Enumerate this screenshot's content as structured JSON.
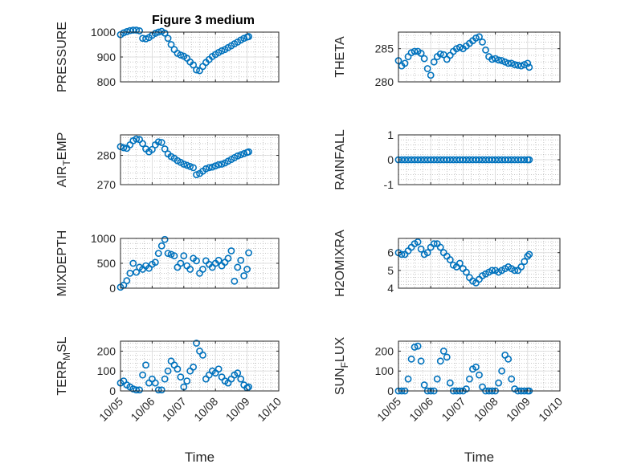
{
  "figure": {
    "title": "Figure 3 medium"
  },
  "colors": {
    "marker": "#0072BD",
    "axis": "#262626",
    "grid": "#a8a8a8",
    "background": "#ffffff"
  },
  "chart_data": [
    {
      "type": "scatter",
      "ylabel": "PRESSURE",
      "xlabel": "",
      "xlim": [
        "10/05",
        "10/10"
      ],
      "ylim": [
        800,
        1000
      ],
      "yticks": [
        800,
        900,
        1000
      ],
      "xticks": [
        "10/05",
        "10/06",
        "10/07",
        "10/08",
        "10/09",
        "10/10"
      ],
      "grid": true,
      "minor_grid": true,
      "series": [
        {
          "x": [
            0.0,
            0.1,
            0.2,
            0.3,
            0.4,
            0.5,
            0.6,
            0.7,
            0.8,
            0.9,
            1.0,
            1.1,
            1.2,
            1.3,
            1.4,
            1.5,
            1.6,
            1.7,
            1.8,
            1.9,
            2.0,
            2.1,
            2.2,
            2.3,
            2.4,
            2.5,
            2.6,
            2.7,
            2.8,
            2.9,
            3.0,
            3.1,
            3.2,
            3.3,
            3.4,
            3.5,
            3.6,
            3.7,
            3.8,
            3.9,
            4.0,
            4.05
          ],
          "y": [
            990,
            997,
            1002,
            1006,
            1008,
            1008,
            1005,
            975,
            973,
            978,
            987,
            995,
            1000,
            1003,
            996,
            975,
            950,
            930,
            915,
            908,
            903,
            895,
            880,
            868,
            848,
            845,
            862,
            878,
            890,
            902,
            910,
            918,
            925,
            930,
            938,
            945,
            953,
            960,
            968,
            975,
            980,
            982
          ]
        }
      ]
    },
    {
      "type": "scatter",
      "ylabel": "THETA",
      "xlabel": "",
      "xlim": [
        "10/05",
        "10/10"
      ],
      "ylim": [
        280,
        287.5
      ],
      "yticks": [
        280,
        285
      ],
      "xticks": [
        "10/05",
        "10/06",
        "10/07",
        "10/08",
        "10/09",
        "10/10"
      ],
      "grid": true,
      "minor_grid": true,
      "series": [
        {
          "x": [
            0.0,
            0.1,
            0.2,
            0.3,
            0.4,
            0.5,
            0.6,
            0.7,
            0.8,
            0.9,
            1.0,
            1.1,
            1.2,
            1.3,
            1.4,
            1.5,
            1.6,
            1.7,
            1.8,
            1.9,
            2.0,
            2.1,
            2.2,
            2.3,
            2.4,
            2.5,
            2.6,
            2.7,
            2.8,
            2.9,
            3.0,
            3.1,
            3.2,
            3.3,
            3.4,
            3.5,
            3.6,
            3.7,
            3.8,
            3.9,
            4.0,
            4.05
          ],
          "y": [
            283.2,
            282.4,
            282.8,
            283.8,
            284.4,
            284.6,
            284.6,
            284.3,
            283.5,
            282.0,
            281.0,
            283.0,
            283.8,
            284.2,
            284.1,
            283.4,
            284.0,
            284.6,
            285.0,
            285.2,
            285.0,
            285.4,
            285.8,
            286.2,
            286.6,
            286.8,
            286.0,
            284.8,
            283.8,
            283.4,
            283.5,
            283.3,
            283.2,
            283.0,
            282.8,
            282.8,
            282.6,
            282.5,
            282.4,
            282.6,
            282.8,
            282.2
          ]
        }
      ]
    },
    {
      "type": "scatter",
      "ylabel": "AIR_TEMP",
      "xlabel": "",
      "xlim": [
        "10/05",
        "10/10"
      ],
      "ylim": [
        270,
        287
      ],
      "yticks": [
        270,
        280
      ],
      "xticks": [
        "10/05",
        "10/06",
        "10/07",
        "10/08",
        "10/09",
        "10/10"
      ],
      "grid": true,
      "minor_grid": true,
      "series": [
        {
          "x": [
            0.0,
            0.1,
            0.2,
            0.3,
            0.4,
            0.5,
            0.6,
            0.7,
            0.8,
            0.9,
            1.0,
            1.1,
            1.2,
            1.3,
            1.4,
            1.5,
            1.6,
            1.7,
            1.8,
            1.9,
            2.0,
            2.1,
            2.2,
            2.3,
            2.4,
            2.5,
            2.6,
            2.7,
            2.8,
            2.9,
            3.0,
            3.1,
            3.2,
            3.3,
            3.4,
            3.5,
            3.6,
            3.7,
            3.8,
            3.9,
            4.0,
            4.05
          ],
          "y": [
            283.0,
            282.6,
            282.4,
            283.6,
            285.0,
            285.6,
            285.4,
            284.0,
            282.2,
            281.2,
            282.0,
            283.6,
            284.6,
            284.4,
            282.2,
            280.5,
            279.6,
            279.0,
            278.2,
            277.6,
            277.0,
            276.6,
            276.2,
            275.8,
            273.4,
            273.8,
            274.6,
            275.4,
            275.8,
            276.0,
            276.4,
            276.8,
            277.0,
            277.4,
            278.0,
            278.6,
            279.2,
            279.8,
            280.2,
            280.6,
            281.0,
            281.2
          ]
        }
      ]
    },
    {
      "type": "scatter",
      "ylabel": "RAINFALL",
      "xlabel": "",
      "xlim": [
        "10/05",
        "10/10"
      ],
      "ylim": [
        -1,
        1
      ],
      "yticks": [
        -1,
        0,
        1
      ],
      "xticks": [
        "10/05",
        "10/06",
        "10/07",
        "10/08",
        "10/09",
        "10/10"
      ],
      "grid": true,
      "minor_grid": true,
      "series": [
        {
          "x": [
            0.0,
            0.1,
            0.2,
            0.3,
            0.4,
            0.5,
            0.6,
            0.7,
            0.8,
            0.9,
            1.0,
            1.1,
            1.2,
            1.3,
            1.4,
            1.5,
            1.6,
            1.7,
            1.8,
            1.9,
            2.0,
            2.1,
            2.2,
            2.3,
            2.4,
            2.5,
            2.6,
            2.7,
            2.8,
            2.9,
            3.0,
            3.1,
            3.2,
            3.3,
            3.4,
            3.5,
            3.6,
            3.7,
            3.8,
            3.9,
            4.0,
            4.05
          ],
          "y": [
            0,
            0,
            0,
            0,
            0,
            0,
            0,
            0,
            0,
            0,
            0,
            0,
            0,
            0,
            0,
            0,
            0,
            0,
            0,
            0,
            0,
            0,
            0,
            0,
            0,
            0,
            0,
            0,
            0,
            0,
            0,
            0,
            0,
            0,
            0,
            0,
            0,
            0,
            0,
            0,
            0,
            0
          ]
        }
      ]
    },
    {
      "type": "scatter",
      "ylabel": "MIXDEPTH",
      "xlabel": "",
      "xlim": [
        "10/05",
        "10/10"
      ],
      "ylim": [
        0,
        1000
      ],
      "yticks": [
        0,
        500,
        1000
      ],
      "xticks": [
        "10/05",
        "10/06",
        "10/07",
        "10/08",
        "10/09",
        "10/10"
      ],
      "grid": true,
      "minor_grid": true,
      "series": [
        {
          "x": [
            0.0,
            0.1,
            0.2,
            0.3,
            0.4,
            0.5,
            0.6,
            0.7,
            0.8,
            0.9,
            1.0,
            1.1,
            1.2,
            1.3,
            1.4,
            1.5,
            1.6,
            1.7,
            1.8,
            1.9,
            2.0,
            2.1,
            2.2,
            2.3,
            2.4,
            2.5,
            2.6,
            2.7,
            2.8,
            2.9,
            3.0,
            3.1,
            3.2,
            3.3,
            3.4,
            3.5,
            3.6,
            3.7,
            3.8,
            3.9,
            4.0,
            4.05
          ],
          "y": [
            20,
            60,
            150,
            300,
            500,
            320,
            420,
            380,
            450,
            400,
            480,
            520,
            700,
            850,
            980,
            700,
            680,
            650,
            420,
            500,
            650,
            450,
            380,
            600,
            550,
            300,
            380,
            550,
            480,
            420,
            500,
            560,
            450,
            520,
            600,
            750,
            140,
            420,
            560,
            250,
            380,
            710
          ]
        }
      ]
    },
    {
      "type": "scatter",
      "ylabel": "H2OMIXRA",
      "xlabel": "",
      "xlim": [
        "10/05",
        "10/10"
      ],
      "ylim": [
        4,
        6.8
      ],
      "yticks": [
        4,
        5,
        6
      ],
      "xticks": [
        "10/05",
        "10/06",
        "10/07",
        "10/08",
        "10/09",
        "10/10"
      ],
      "grid": true,
      "minor_grid": true,
      "series": [
        {
          "x": [
            0.0,
            0.1,
            0.2,
            0.3,
            0.4,
            0.5,
            0.6,
            0.7,
            0.8,
            0.9,
            1.0,
            1.1,
            1.2,
            1.3,
            1.4,
            1.5,
            1.6,
            1.7,
            1.8,
            1.9,
            2.0,
            2.1,
            2.2,
            2.3,
            2.4,
            2.5,
            2.6,
            2.7,
            2.8,
            2.9,
            3.0,
            3.1,
            3.2,
            3.3,
            3.4,
            3.5,
            3.6,
            3.7,
            3.8,
            3.9,
            4.0,
            4.05
          ],
          "y": [
            6.0,
            5.9,
            5.9,
            6.1,
            6.3,
            6.5,
            6.6,
            6.2,
            5.9,
            6.0,
            6.3,
            6.5,
            6.5,
            6.3,
            6.0,
            5.8,
            5.6,
            5.3,
            5.2,
            5.4,
            5.1,
            4.9,
            4.6,
            4.4,
            4.3,
            4.5,
            4.7,
            4.8,
            4.9,
            5.0,
            5.0,
            4.9,
            5.0,
            5.1,
            5.2,
            5.1,
            5.0,
            5.0,
            5.2,
            5.5,
            5.8,
            5.9
          ]
        }
      ]
    },
    {
      "type": "scatter",
      "ylabel": "TERR_MSL",
      "xlabel": "Time",
      "xlim": [
        "10/05",
        "10/10"
      ],
      "ylim": [
        0,
        250
      ],
      "yticks": [
        0,
        100,
        200
      ],
      "xticks": [
        "10/05",
        "10/06",
        "10/07",
        "10/08",
        "10/09",
        "10/10"
      ],
      "grid": true,
      "minor_grid": true,
      "series": [
        {
          "x": [
            0.0,
            0.1,
            0.2,
            0.3,
            0.4,
            0.5,
            0.6,
            0.7,
            0.8,
            0.9,
            1.0,
            1.1,
            1.2,
            1.3,
            1.4,
            1.5,
            1.6,
            1.7,
            1.8,
            1.9,
            2.0,
            2.1,
            2.2,
            2.3,
            2.4,
            2.5,
            2.6,
            2.7,
            2.8,
            2.9,
            3.0,
            3.1,
            3.2,
            3.3,
            3.4,
            3.5,
            3.6,
            3.7,
            3.8,
            3.9,
            4.0,
            4.05
          ],
          "y": [
            40,
            50,
            30,
            20,
            10,
            5,
            5,
            80,
            130,
            40,
            60,
            40,
            5,
            5,
            60,
            100,
            150,
            130,
            110,
            70,
            20,
            50,
            100,
            120,
            240,
            200,
            180,
            60,
            80,
            100,
            90,
            110,
            70,
            50,
            40,
            60,
            80,
            90,
            60,
            30,
            15,
            20
          ]
        }
      ]
    },
    {
      "type": "scatter",
      "ylabel": "SUN_FLUX",
      "xlabel": "Time",
      "xlim": [
        "10/05",
        "10/10"
      ],
      "ylim": [
        0,
        250
      ],
      "yticks": [
        0,
        100,
        200
      ],
      "xticks": [
        "10/05",
        "10/06",
        "10/07",
        "10/08",
        "10/09",
        "10/10"
      ],
      "grid": true,
      "minor_grid": true,
      "series": [
        {
          "x": [
            0.0,
            0.1,
            0.2,
            0.3,
            0.4,
            0.5,
            0.6,
            0.7,
            0.8,
            0.9,
            1.0,
            1.1,
            1.2,
            1.3,
            1.4,
            1.5,
            1.6,
            1.7,
            1.8,
            1.9,
            2.0,
            2.1,
            2.2,
            2.3,
            2.4,
            2.5,
            2.6,
            2.7,
            2.8,
            2.9,
            3.0,
            3.1,
            3.2,
            3.3,
            3.4,
            3.5,
            3.6,
            3.7,
            3.8,
            3.9,
            4.0,
            4.05
          ],
          "y": [
            0,
            0,
            0,
            60,
            160,
            220,
            225,
            150,
            30,
            0,
            0,
            0,
            60,
            150,
            200,
            170,
            40,
            0,
            0,
            0,
            0,
            10,
            60,
            110,
            120,
            80,
            20,
            0,
            0,
            0,
            0,
            40,
            100,
            180,
            160,
            60,
            10,
            0,
            0,
            0,
            0,
            0
          ]
        }
      ]
    }
  ]
}
